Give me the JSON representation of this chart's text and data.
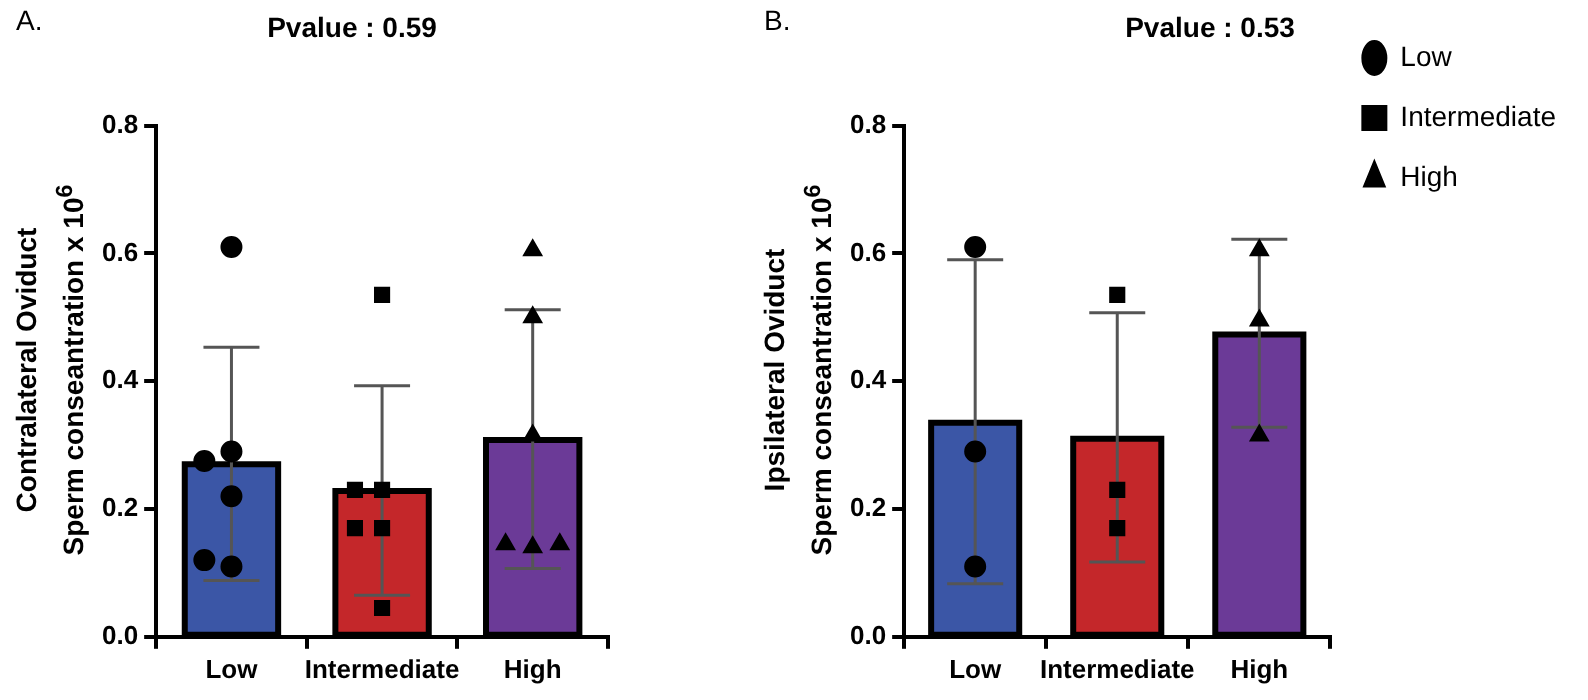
{
  "chart_data": [
    {
      "type": "bar",
      "title": "Pvalue : 0.59",
      "ylabel": "Contralateral Oviduct\nSperm conseantration x 10$^{6}$",
      "annotations": [
        "A."
      ],
      "categories": [
        "Low",
        "Intermediate",
        "High"
      ],
      "ylim": [
        0,
        0.8
      ],
      "yticks": [
        {
          "value": 0,
          "label": "0.0"
        },
        0.2,
        0.4,
        0.6,
        0.8
      ],
      "grid": false,
      "legend": false,
      "series": [
        {
          "colors": [
            "#3b56a6",
            "#c4272a",
            "#6b3a97"
          ],
          "values": [
            0.27,
            0.228,
            0.308
          ],
          "errors": [
            [
              0.088,
              0.453
            ],
            [
              0.065,
              0.393
            ],
            [
              0.107,
              0.512
            ]
          ]
        },
        {
          "type": "scatter",
          "marker": "circle",
          "color": "#000000",
          "x": [
            "Low",
            "Low",
            "Low",
            "Low",
            "Low",
            "Low"
          ],
          "values": [
            0.61,
            0.29,
            0.275,
            0.22,
            0.11,
            0.12
          ]
        },
        {
          "type": "scatter",
          "marker": "square",
          "color": "#000000",
          "x": [
            "Intermediate",
            "Intermediate",
            "Intermediate",
            "Intermediate",
            "Intermediate",
            "Intermediate"
          ],
          "values": [
            0.535,
            0.23,
            0.23,
            0.17,
            0.17,
            0.045
          ]
        },
        {
          "type": "scatter",
          "marker": "triangle",
          "color": "#000000",
          "x": [
            "High",
            "High",
            "High",
            "High",
            "High",
            "High"
          ],
          "values": [
            0.605,
            0.5,
            0.315,
            0.14,
            0.145,
            0.145
          ]
        }
      ]
    },
    {
      "type": "bar",
      "title": "Pvalue : 0.53",
      "ylabel": "Ipsilateral Oviduct\nSperm conseantration x 10$^{6}$",
      "annotations": [
        "B."
      ],
      "categories": [
        "Low",
        "Intermediate",
        "High"
      ],
      "ylim": [
        0,
        0.8
      ],
      "yticks": [
        {
          "value": 0,
          "label": "0.0"
        },
        0.2,
        0.4,
        0.6,
        0.8
      ],
      "grid": false,
      "legend": "top right",
      "series": [
        {
          "colors": [
            "#3b56a6",
            "#c4272a",
            "#6b3a97"
          ],
          "values": [
            0.335,
            0.31,
            0.473
          ],
          "errors": [
            [
              0.083,
              0.59
            ],
            [
              0.117,
              0.507
            ],
            [
              0.328,
              0.622
            ]
          ]
        },
        {
          "type": "scatter",
          "name": "Low",
          "marker": "circle",
          "color": "#000000",
          "x": [
            "Low",
            "Low",
            "Low"
          ],
          "values": [
            0.61,
            0.29,
            0.11
          ]
        },
        {
          "type": "scatter",
          "name": "Intermediate",
          "marker": "square",
          "color": "#000000",
          "x": [
            "Intermediate",
            "Intermediate",
            "Intermediate"
          ],
          "values": [
            0.535,
            0.23,
            0.17
          ]
        },
        {
          "type": "scatter",
          "name": "High",
          "marker": "triangle",
          "color": "#000000",
          "x": [
            "High",
            "High",
            "High"
          ],
          "values": [
            0.605,
            0.495,
            0.315
          ]
        }
      ]
    }
  ]
}
